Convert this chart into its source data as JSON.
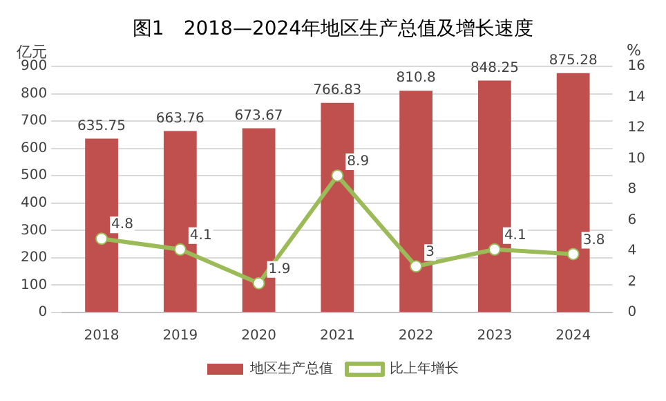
{
  "chart_data": {
    "type": "bar",
    "title": "图1　2018—2024年地区生产总值及增长速度",
    "ylabel": "亿元",
    "y2label": "%",
    "categories": [
      "2018",
      "2019",
      "2020",
      "2021",
      "2022",
      "2023",
      "2024"
    ],
    "series": [
      {
        "name": "地区生产总值",
        "color": "#c0504d",
        "values": [
          635.75,
          663.76,
          673.67,
          766.83,
          810.8,
          848.25,
          875.28
        ]
      },
      {
        "name": "比上年增长",
        "type": "line",
        "axis": "y2",
        "color": "#9bbb59",
        "values": [
          4.8,
          4.1,
          1.9,
          8.9,
          3,
          4.1,
          3.8
        ]
      }
    ],
    "ylim": [
      0,
      900
    ],
    "yticks": [
      0,
      100,
      200,
      300,
      400,
      500,
      600,
      700,
      800,
      900
    ],
    "y2lim": [
      0,
      16
    ],
    "y2ticks": [
      0,
      2,
      4,
      6,
      8,
      10,
      12,
      14,
      16
    ],
    "grid": "y",
    "legend": "bottom",
    "marker": "circle",
    "line_style": "solid",
    "data_labels": true
  }
}
